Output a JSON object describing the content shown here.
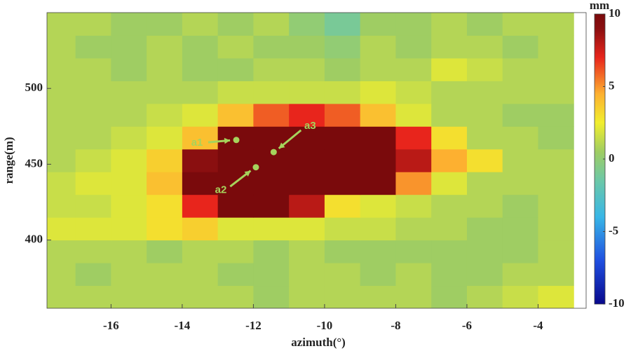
{
  "chart_data": {
    "type": "heatmap",
    "xlabel": "azimuth(°)",
    "ylabel": "range(m)",
    "colorbar_label": "mm",
    "xlim": [
      -17.8,
      -2.65
    ],
    "ylim": [
      355,
      550
    ],
    "xticks": [
      -16,
      -14,
      -12,
      -10,
      -8,
      -6,
      -4
    ],
    "yticks": [
      400,
      450,
      500
    ],
    "clim": [
      -10,
      10
    ],
    "cticks": [
      -10,
      -5,
      0,
      5,
      10
    ],
    "colormap": [
      {
        "value": -10,
        "color": "#08088c"
      },
      {
        "value": -7,
        "color": "#1f4fe0"
      },
      {
        "value": -4,
        "color": "#38b6e6"
      },
      {
        "value": -1.5,
        "color": "#6cc8a8"
      },
      {
        "value": 0.5,
        "color": "#9fcd63"
      },
      {
        "value": 2.5,
        "color": "#f1ee2e"
      },
      {
        "value": 4.5,
        "color": "#fdb030"
      },
      {
        "value": 7,
        "color": "#e8251c"
      },
      {
        "value": 9,
        "color": "#8a0f10"
      },
      {
        "value": 10,
        "color": "#7a0a0c"
      }
    ],
    "x": [
      -17.5,
      -16.5,
      -15.5,
      -14.5,
      -13.5,
      -12.5,
      -11.5,
      -10.5,
      -9.5,
      -8.5,
      -7.5,
      -6.5,
      -5.5,
      -4.5,
      -3.5
    ],
    "y": [
      362.5,
      377.5,
      392.5,
      407.5,
      422.5,
      437.5,
      452.5,
      467.5,
      482.5,
      497.5,
      512.5,
      527.5,
      542.5
    ],
    "z": [
      [
        1,
        1,
        1,
        1,
        1,
        1,
        0.5,
        1,
        1,
        1,
        1,
        0.5,
        1,
        1.5,
        2
      ],
      [
        1,
        0.5,
        1,
        1,
        1,
        0.5,
        0.5,
        1,
        1,
        0.5,
        1,
        0.5,
        0.5,
        1,
        1
      ],
      [
        1,
        1,
        1,
        0.5,
        1,
        1,
        0.5,
        1,
        0.5,
        0.5,
        0.5,
        0.5,
        0.5,
        0.5,
        1
      ],
      [
        2,
        2,
        2,
        3,
        3.5,
        2,
        2,
        2,
        1.5,
        1.5,
        1,
        1,
        0.5,
        0.5,
        1
      ],
      [
        1.5,
        1.5,
        2,
        3,
        7,
        10,
        10,
        8,
        3,
        2,
        1.5,
        1,
        1,
        0.5,
        1
      ],
      [
        1.5,
        2,
        2,
        4,
        10,
        10,
        10,
        10,
        10,
        10,
        5,
        2,
        1,
        1,
        1
      ],
      [
        1,
        1.5,
        2,
        3.5,
        9,
        10,
        10,
        10,
        10,
        10,
        8,
        4.5,
        3,
        1,
        1
      ],
      [
        1,
        1,
        1.5,
        2,
        4,
        10,
        10,
        10,
        10,
        10,
        7,
        3,
        1,
        1,
        0.5
      ],
      [
        1,
        1,
        1,
        1.5,
        2,
        4,
        6,
        7,
        6,
        4,
        2,
        1,
        1,
        0.5,
        0.5
      ],
      [
        1,
        1,
        1,
        1,
        1,
        1.5,
        1.5,
        1.5,
        1.5,
        2,
        1.5,
        1,
        1,
        1,
        1
      ],
      [
        1,
        1,
        0.5,
        1,
        0.5,
        0.5,
        1,
        1,
        0.5,
        1,
        1,
        2,
        1.5,
        1,
        1
      ],
      [
        1,
        0.5,
        0.5,
        1,
        0.5,
        1,
        0.5,
        0.5,
        0,
        1,
        0.5,
        1,
        1,
        0.5,
        1
      ],
      [
        1,
        1,
        0.5,
        0.5,
        1,
        0.5,
        1,
        0,
        -1,
        0.5,
        0.5,
        1,
        0.5,
        1,
        1
      ]
    ],
    "annotations": [
      {
        "text": "a1",
        "x": -12.48,
        "y": 466
      },
      {
        "text": "a2",
        "x": -11.93,
        "y": 448
      },
      {
        "text": "a3",
        "x": -11.43,
        "y": 458
      }
    ]
  }
}
